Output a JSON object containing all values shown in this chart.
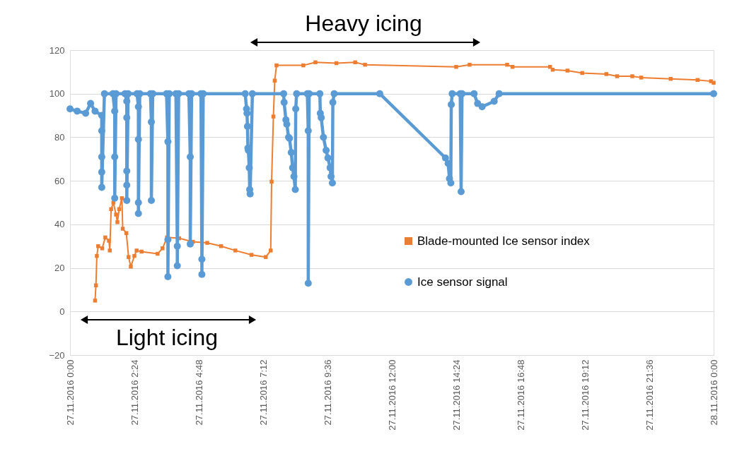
{
  "chart_data": {
    "type": "line",
    "xlim": [
      "2016-11-27T00:00",
      "2016-11-28T00:00"
    ],
    "xticks": [
      {
        "value": "2016-11-27T00:00",
        "label": "27.11.2016 0:00"
      },
      {
        "value": "2016-11-27T02:24",
        "label": "27.11.2016 2:24"
      },
      {
        "value": "2016-11-27T04:48",
        "label": "27.11.2016 4:48"
      },
      {
        "value": "2016-11-27T07:12",
        "label": "27.11.2016 7:12"
      },
      {
        "value": "2016-11-27T09:36",
        "label": "27.11.2016 9:36"
      },
      {
        "value": "2016-11-27T12:00",
        "label": "27.11.2016 12:00"
      },
      {
        "value": "2016-11-27T14:24",
        "label": "27.11.2016 14:24"
      },
      {
        "value": "2016-11-27T16:48",
        "label": "27.11.2016 16:48"
      },
      {
        "value": "2016-11-27T19:12",
        "label": "27.11.2016 19:12"
      },
      {
        "value": "2016-11-27T21:36",
        "label": "27.11.2016 21:36"
      },
      {
        "value": "2016-11-28T00:00",
        "label": "28.11.2016 0:00"
      }
    ],
    "ylim": [
      -20,
      120
    ],
    "yticks": [
      -20,
      0,
      20,
      40,
      60,
      80,
      100,
      120
    ],
    "grid": "y",
    "legend": "right",
    "annotations": [
      "Heavy icing",
      "Light icing"
    ],
    "series": [
      {
        "name": "Blade-mounted Ice sensor index",
        "color": "#ed7d31",
        "marker": "square",
        "x": [
          "2016-11-27T00:56",
          "2016-11-27T00:58",
          "2016-11-27T01:00",
          "2016-11-27T01:03",
          "2016-11-27T01:12",
          "2016-11-27T01:19",
          "2016-11-27T01:27",
          "2016-11-27T01:29",
          "2016-11-27T01:32",
          "2016-11-27T01:37",
          "2016-11-27T01:43",
          "2016-11-27T01:46",
          "2016-11-27T01:50",
          "2016-11-27T01:56",
          "2016-11-27T01:58",
          "2016-11-27T02:06",
          "2016-11-27T02:11",
          "2016-11-27T02:16",
          "2016-11-27T02:24",
          "2016-11-27T02:29",
          "2016-11-27T02:40",
          "2016-11-27T03:16",
          "2016-11-27T03:27",
          "2016-11-27T03:37",
          "2016-11-27T04:04",
          "2016-11-27T04:35",
          "2016-11-27T05:07",
          "2016-11-27T05:38",
          "2016-11-27T06:10",
          "2016-11-27T06:46",
          "2016-11-27T07:18",
          "2016-11-27T07:29",
          "2016-11-27T07:31",
          "2016-11-27T07:35",
          "2016-11-27T07:38",
          "2016-11-27T07:42",
          "2016-11-27T08:42",
          "2016-11-27T09:09",
          "2016-11-27T09:56",
          "2016-11-27T10:38",
          "2016-11-27T11:00",
          "2016-11-27T14:24",
          "2016-11-27T14:54",
          "2016-11-27T16:18",
          "2016-11-27T16:30",
          "2016-11-27T17:54",
          "2016-11-27T18:00",
          "2016-11-27T18:33",
          "2016-11-27T19:06",
          "2016-11-27T20:00",
          "2016-11-27T20:24",
          "2016-11-27T20:58",
          "2016-11-27T21:18",
          "2016-11-27T22:24",
          "2016-11-27T23:24",
          "2016-11-27T23:54",
          "2016-11-28T00:00"
        ],
        "values": [
          5,
          12,
          25.5,
          30,
          29,
          34,
          32.5,
          28,
          47,
          50,
          44.5,
          41,
          47,
          52,
          38,
          36,
          25,
          20.6,
          25.5,
          28,
          27.5,
          26.5,
          29,
          34,
          33.6,
          32,
          31.5,
          30,
          28,
          26,
          25,
          28,
          59.6,
          89.5,
          106,
          113,
          113,
          114.4,
          114,
          114.4,
          113.3,
          112.3,
          113.3,
          113.3,
          112.3,
          112.3,
          111,
          110.6,
          109.5,
          109,
          108,
          108,
          107.4,
          106.8,
          106.3,
          105.7,
          105
        ]
      },
      {
        "name": "Ice sensor signal",
        "color": "#5b9bd5",
        "marker": "circle",
        "x": [
          "2016-11-27T00:00",
          "2016-11-27T00:16",
          "2016-11-27T00:35",
          "2016-11-27T00:46",
          "2016-11-27T00:56",
          "2016-11-27T01:11",
          "2016-11-27T01:11",
          "2016-11-27T01:11",
          "2016-11-27T01:11",
          "2016-11-27T01:11",
          "2016-11-27T01:17",
          "2016-11-27T01:36",
          "2016-11-27T01:40",
          "2016-11-27T01:40",
          "2016-11-27T01:40",
          "2016-11-27T01:43",
          "2016-11-27T02:03",
          "2016-11-27T02:07",
          "2016-11-27T02:07",
          "2016-11-27T02:07",
          "2016-11-27T02:07",
          "2016-11-27T02:07",
          "2016-11-27T02:10",
          "2016-11-27T02:30",
          "2016-11-27T02:33",
          "2016-11-27T02:33",
          "2016-11-27T02:33",
          "2016-11-27T02:33",
          "2016-11-27T02:36",
          "2016-11-27T03:00",
          "2016-11-27T03:02",
          "2016-11-27T03:02",
          "2016-11-27T03:05",
          "2016-11-27T03:36",
          "2016-11-27T03:39",
          "2016-11-27T03:39",
          "2016-11-27T03:39",
          "2016-11-27T03:42",
          "2016-11-27T03:57",
          "2016-11-27T04:00",
          "2016-11-27T04:00",
          "2016-11-27T04:03",
          "2016-11-27T04:26",
          "2016-11-27T04:29",
          "2016-11-27T04:29",
          "2016-11-27T04:32",
          "2016-11-27T04:53",
          "2016-11-27T04:55",
          "2016-11-27T04:55",
          "2016-11-27T04:58",
          "2016-11-27T06:32",
          "2016-11-27T06:35",
          "2016-11-27T06:36",
          "2016-11-27T06:37",
          "2016-11-27T06:38",
          "2016-11-27T06:39",
          "2016-11-27T06:41",
          "2016-11-27T06:42",
          "2016-11-27T06:43",
          "2016-11-27T06:48",
          "2016-11-27T07:58",
          "2016-11-27T07:59",
          "2016-11-27T08:03",
          "2016-11-27T08:05",
          "2016-11-27T08:09",
          "2016-11-27T08:11",
          "2016-11-27T08:15",
          "2016-11-27T08:18",
          "2016-11-27T08:21",
          "2016-11-27T08:24",
          "2016-11-27T08:25",
          "2016-11-27T08:27",
          "2016-11-27T08:51",
          "2016-11-27T08:53",
          "2016-11-27T08:53",
          "2016-11-27T08:55",
          "2016-11-27T09:19",
          "2016-11-27T09:20",
          "2016-11-27T09:22",
          "2016-11-27T09:27",
          "2016-11-27T09:33",
          "2016-11-27T09:37",
          "2016-11-27T09:42",
          "2016-11-27T09:44",
          "2016-11-27T09:47",
          "2016-11-27T09:48",
          "2016-11-27T09:51",
          "2016-11-27T11:33",
          "2016-11-27T14:00",
          "2016-11-27T14:06",
          "2016-11-27T14:09",
          "2016-11-27T14:12",
          "2016-11-27T14:13",
          "2016-11-27T14:15",
          "2016-11-27T14:33",
          "2016-11-27T14:35",
          "2016-11-27T14:37",
          "2016-11-27T15:04",
          "2016-11-27T15:12",
          "2016-11-27T15:22",
          "2016-11-27T15:49",
          "2016-11-27T16:00",
          "2016-11-28T00:00"
        ],
        "values": [
          93,
          92,
          91,
          95.5,
          92,
          90,
          83,
          71,
          64,
          57,
          100,
          100,
          92,
          71,
          52,
          100,
          100,
          96.5,
          89,
          64.5,
          58,
          51,
          100,
          100,
          94,
          79,
          50,
          45,
          100,
          100,
          87,
          51,
          100,
          100,
          78,
          33,
          16,
          100,
          100,
          30,
          21,
          100,
          100,
          71,
          31,
          100,
          100,
          24,
          17,
          100,
          100,
          93,
          91,
          85,
          75,
          74,
          66,
          56,
          54,
          100,
          100,
          96,
          88,
          86,
          80,
          79.5,
          73,
          66,
          62,
          56,
          93,
          100,
          100,
          83,
          13,
          100,
          100,
          91,
          89,
          80,
          74,
          70.5,
          66,
          62,
          59,
          96,
          100,
          100,
          70.5,
          68,
          61,
          59,
          95,
          100,
          100,
          55,
          100,
          100,
          95.5,
          94,
          96.5,
          100,
          100
        ]
      }
    ]
  }
}
